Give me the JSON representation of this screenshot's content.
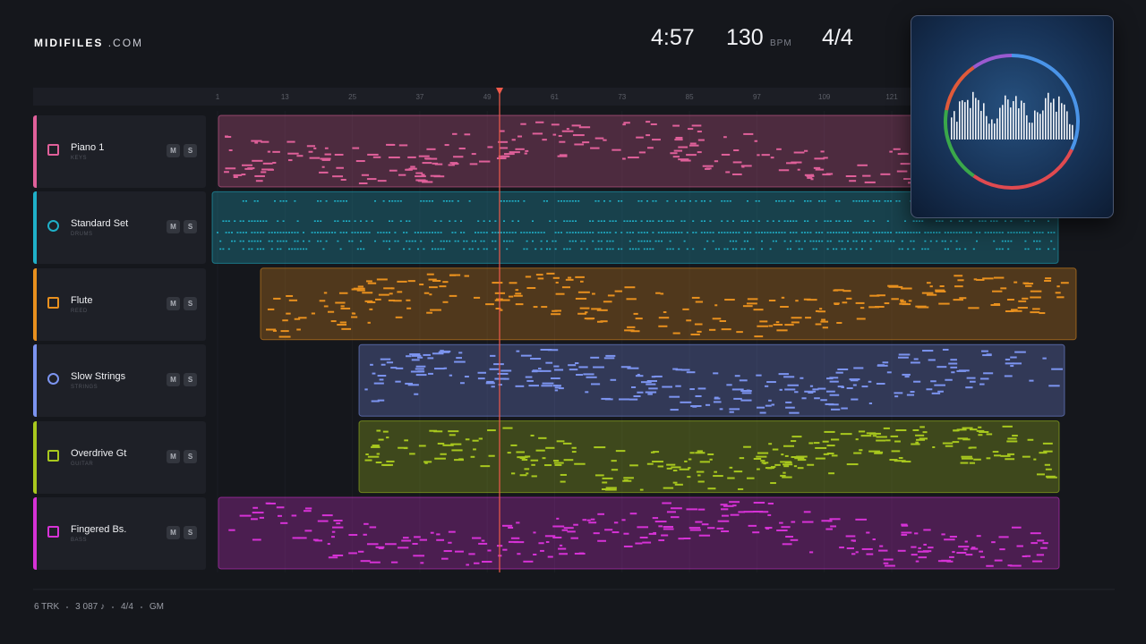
{
  "header": {
    "brand": "MIDIFILES",
    "domain": ".COM",
    "time": "4:57",
    "tempo": "130",
    "tempo_unit": "BPM",
    "meter": "4/4"
  },
  "ruler": {
    "labels": [
      "1",
      "13",
      "25",
      "37",
      "49",
      "61",
      "73",
      "85",
      "97",
      "109",
      "121"
    ]
  },
  "tracks": [
    {
      "name": "Piano 1",
      "group": "KEYS",
      "mute": "M",
      "solo": "S",
      "color": "#e0609a"
    },
    {
      "name": "Standard Set",
      "group": "DRUMS",
      "mute": "M",
      "solo": "S",
      "color": "#1fb0c8"
    },
    {
      "name": "Flute",
      "group": "REED",
      "mute": "M",
      "solo": "S",
      "color": "#e8901e"
    },
    {
      "name": "Slow Strings",
      "group": "STRINGS",
      "mute": "M",
      "solo": "S",
      "color": "#7c94f0"
    },
    {
      "name": "Overdrive Gt",
      "group": "GUITAR",
      "mute": "M",
      "solo": "S",
      "color": "#a8c81e"
    },
    {
      "name": "Fingered Bs.",
      "group": "BASS",
      "mute": "M",
      "solo": "S",
      "color": "#d632d6"
    }
  ],
  "footer": {
    "items": [
      "6 TRK",
      "3 087 ♪",
      "4/4",
      "GM"
    ]
  }
}
